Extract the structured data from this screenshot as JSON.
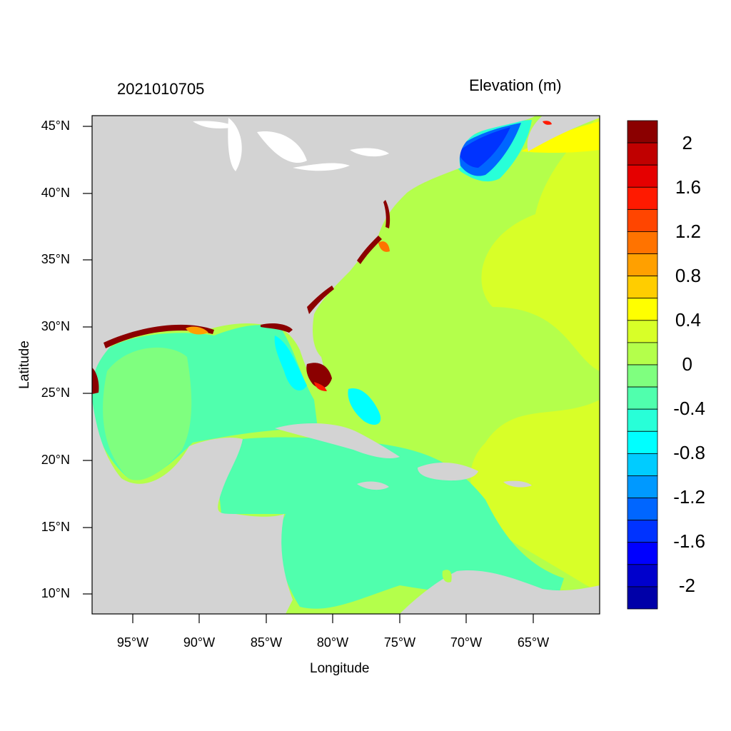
{
  "header": {
    "date_label": "2021010705",
    "variable_label": "Elevation (m)"
  },
  "axes": {
    "xlabel": "Longitude",
    "ylabel": "Latitude",
    "x_ticks": [
      "95°W",
      "90°W",
      "85°W",
      "80°W",
      "75°W",
      "70°W",
      "65°W"
    ],
    "y_ticks": [
      "45°N",
      "40°N",
      "35°N",
      "30°N",
      "25°N",
      "20°N",
      "15°N",
      "10°N"
    ]
  },
  "map": {
    "extent": {
      "lon_min": -98,
      "lon_max": -60,
      "lat_min": 8.5,
      "lat_max": 46
    },
    "land_color": "#d3d3d3",
    "water_color_default": "#b4ff4b"
  },
  "colorbar": {
    "labels": [
      "2",
      "1.6",
      "1.2",
      "0.8",
      "0.4",
      "0",
      "-0.4",
      "-0.8",
      "-1.2",
      "-1.6",
      "-2"
    ],
    "colors": [
      "#8b0000",
      "#c00000",
      "#e50000",
      "#ff1a00",
      "#ff4500",
      "#ff7300",
      "#ffa000",
      "#ffcd00",
      "#ffff00",
      "#d8ff28",
      "#b4ff4b",
      "#7fff7f",
      "#50ffad",
      "#28ffd8",
      "#00ffff",
      "#00ccff",
      "#0099ff",
      "#0066ff",
      "#0033ff",
      "#0000ff",
      "#0000cc",
      "#0000a8"
    ]
  }
}
